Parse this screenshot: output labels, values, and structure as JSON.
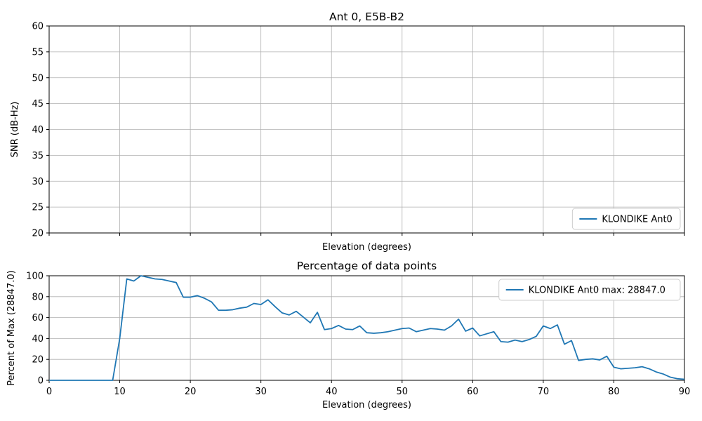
{
  "colors": {
    "series_blue": "#1f77b4",
    "grid": "#b0b0b0",
    "spine": "#000000",
    "legend_border": "#cccccc",
    "background": "#ffffff",
    "text": "#000000"
  },
  "chart_data": [
    {
      "id": "snr-chart",
      "type": "line",
      "title": "Ant 0, E5B-B2",
      "xlabel": "Elevation (degrees)",
      "ylabel": "SNR (dB-Hz)",
      "xlim": [
        0,
        90
      ],
      "ylim": [
        20,
        60
      ],
      "xticks": [
        0,
        10,
        20,
        30,
        40,
        50,
        60,
        70,
        80,
        90
      ],
      "yticks": [
        20,
        25,
        30,
        35,
        40,
        45,
        50,
        55,
        60
      ],
      "show_xtick_labels": false,
      "grid": true,
      "legend": {
        "position": "lower-right",
        "entries": [
          {
            "label": "KLONDIKE Ant0",
            "color": "#1f77b4"
          }
        ]
      },
      "series": []
    },
    {
      "id": "percentage-chart",
      "type": "line",
      "title": "Percentage of data points",
      "xlabel": "Elevation (degrees)",
      "ylabel": "Percent of Max (28847.0)",
      "xlim": [
        0,
        90
      ],
      "ylim": [
        0,
        100
      ],
      "xticks": [
        0,
        10,
        20,
        30,
        40,
        50,
        60,
        70,
        80,
        90
      ],
      "yticks": [
        0,
        20,
        40,
        60,
        80,
        100
      ],
      "show_xtick_labels": true,
      "grid": true,
      "legend": {
        "position": "upper-right",
        "entries": [
          {
            "label": "KLONDIKE Ant0 max: 28847.0",
            "color": "#1f77b4"
          }
        ]
      },
      "series": [
        {
          "name": "KLONDIKE Ant0",
          "color": "#1f77b4",
          "x": [
            0,
            1,
            2,
            3,
            4,
            5,
            6,
            7,
            8,
            9,
            10,
            11,
            12,
            13,
            14,
            15,
            16,
            17,
            18,
            19,
            20,
            21,
            22,
            23,
            24,
            25,
            26,
            27,
            28,
            29,
            30,
            31,
            32,
            33,
            34,
            35,
            36,
            37,
            38,
            39,
            40,
            41,
            42,
            43,
            44,
            45,
            46,
            47,
            48,
            49,
            50,
            51,
            52,
            53,
            54,
            55,
            56,
            57,
            58,
            59,
            60,
            61,
            62,
            63,
            64,
            65,
            66,
            67,
            68,
            69,
            70,
            71,
            72,
            73,
            74,
            75,
            76,
            77,
            78,
            79,
            80,
            81,
            82,
            83,
            84,
            85,
            86,
            87,
            88,
            89,
            90
          ],
          "y": [
            0,
            0,
            0,
            0,
            0,
            0,
            0,
            0,
            0,
            0,
            40,
            97,
            95,
            100,
            98.5,
            97,
            96.5,
            95,
            93.5,
            79.5,
            79.5,
            81,
            78.5,
            75,
            67,
            67,
            67.5,
            69,
            70,
            73.5,
            72.5,
            77,
            70.5,
            64.5,
            62.5,
            66,
            60.5,
            55,
            65,
            48.5,
            49.5,
            52.5,
            49,
            48.5,
            52,
            45.5,
            45,
            45.5,
            46.5,
            48,
            49.5,
            50,
            46.5,
            48,
            49.5,
            49,
            48,
            52,
            58.5,
            47,
            50,
            42.5,
            44.5,
            46.5,
            37,
            36.5,
            38.5,
            37,
            39,
            42,
            52,
            49.5,
            53,
            34.5,
            38,
            19,
            20,
            20.5,
            19.5,
            23,
            12.5,
            11,
            11.5,
            12,
            13,
            11,
            8,
            6,
            3,
            1.5,
            1
          ]
        }
      ]
    }
  ]
}
